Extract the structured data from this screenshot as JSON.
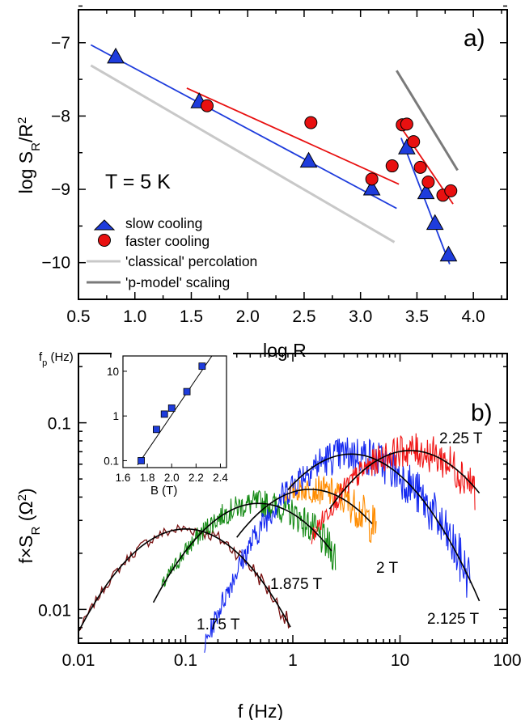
{
  "chart_data": [
    {
      "panel": "a)",
      "type": "scatter",
      "xlabel": "log R",
      "ylabel": "log S_R/R^2",
      "xlim": [
        0.5,
        4.3
      ],
      "ylim": [
        -10.5,
        -6.55
      ],
      "xticks": [
        "0.5",
        "1.0",
        "1.5",
        "2.0",
        "2.5",
        "3.0",
        "3.5",
        "4.0"
      ],
      "yticks": [
        "-7",
        "-8",
        "-9",
        "-10"
      ],
      "annotation": "T = 5 K",
      "legend": [
        {
          "label": "slow cooling",
          "marker": "triangle",
          "color": "#1e3cdc"
        },
        {
          "label": "faster cooling",
          "marker": "circle",
          "color": "#e81010"
        },
        {
          "label": "'classical' percolation",
          "marker": "line",
          "color": "#c8c8c8"
        },
        {
          "label": "'p-model' scaling",
          "marker": "line",
          "color": "#7a7a7a"
        }
      ],
      "series": [
        {
          "name": "slow cooling",
          "color": "#1e3cdc",
          "points": [
            [
              0.83,
              -7.2
            ],
            [
              1.57,
              -7.81
            ],
            [
              2.54,
              -8.62
            ],
            [
              3.1,
              -9.0
            ],
            [
              3.41,
              -8.44
            ],
            [
              3.58,
              -9.05
            ],
            [
              3.66,
              -9.47
            ],
            [
              3.78,
              -9.9
            ]
          ]
        },
        {
          "name": "faster cooling",
          "color": "#e81010",
          "points": [
            [
              1.64,
              -7.86
            ],
            [
              2.56,
              -8.09
            ],
            [
              3.1,
              -8.86
            ],
            [
              3.28,
              -8.68
            ],
            [
              3.37,
              -8.12
            ],
            [
              3.41,
              -8.11
            ],
            [
              3.47,
              -8.35
            ],
            [
              3.53,
              -8.7
            ],
            [
              3.6,
              -8.9
            ],
            [
              3.73,
              -9.08
            ],
            [
              3.8,
              -9.02
            ]
          ]
        }
      ],
      "fit_lines": [
        {
          "series": "slow cooling",
          "color": "#1e3cdc",
          "from": [
            0.61,
            -7.03
          ],
          "to": [
            3.32,
            -9.26
          ]
        },
        {
          "series": "slow cooling",
          "color": "#1e3cdc",
          "from": [
            3.36,
            -8.3
          ],
          "to": [
            3.79,
            -10.02
          ]
        },
        {
          "series": "faster cooling",
          "color": "#e81010",
          "from": [
            1.46,
            -7.62
          ],
          "to": [
            3.34,
            -8.93
          ]
        },
        {
          "series": "faster cooling",
          "color": "#e81010",
          "from": [
            3.37,
            -8.18
          ],
          "to": [
            3.82,
            -9.2
          ]
        },
        {
          "series": "'classical' percolation",
          "color": "#c8c8c8",
          "from": [
            0.61,
            -7.31
          ],
          "to": [
            3.3,
            -9.72
          ]
        },
        {
          "series": "'p-model' scaling",
          "color": "#7a7a7a",
          "from": [
            3.32,
            -7.38
          ],
          "to": [
            3.86,
            -8.74
          ]
        }
      ]
    },
    {
      "panel": "b)",
      "type": "line",
      "xscale": "log",
      "yscale": "log",
      "xlabel": "f (Hz)",
      "ylabel": "f×S_R (Ω^2)",
      "xlim": [
        0.01,
        100
      ],
      "ylim": [
        0.0066,
        0.235
      ],
      "xticks": [
        "0.01",
        "0.1",
        "1",
        "10",
        "100"
      ],
      "yticks": [
        "0.01",
        "0.1"
      ],
      "series": [
        {
          "name": "1.75 T",
          "color": "#7a1212",
          "f_range": [
            0.01,
            0.95
          ],
          "peak_f": 0.1,
          "peak_value": 0.027
        },
        {
          "name": "1.875 T",
          "color": "#148a14",
          "f_range": [
            0.06,
            2.5
          ],
          "peak_f": 0.48,
          "peak_value": 0.037
        },
        {
          "name": "2 T",
          "color": "#ff8c00",
          "f_range": [
            0.8,
            6
          ],
          "peak_f": 1.45,
          "peak_value": 0.044
        },
        {
          "name": "2.125 T",
          "color": "#1428f0",
          "f_range": [
            0.15,
            45
          ],
          "peak_f": 3.5,
          "peak_value": 0.068
        },
        {
          "name": "2.25 T",
          "color": "#f01414",
          "f_range": [
            1.5,
            50
          ],
          "peak_f": 12.5,
          "peak_value": 0.071
        }
      ],
      "inset": {
        "type": "scatter",
        "xlabel": "B (T)",
        "ylabel": "f_p (Hz)",
        "yscale": "log",
        "xlim": [
          1.6,
          2.45
        ],
        "ylim": [
          0.07,
          22
        ],
        "xticks": [
          "1.6",
          "1.8",
          "2.0",
          "2.2",
          "2.4"
        ],
        "yticks": [
          "0.1",
          "1",
          "10"
        ],
        "points": [
          [
            1.75,
            0.1
          ],
          [
            1.875,
            0.5
          ],
          [
            1.94,
            1.1
          ],
          [
            2.0,
            1.5
          ],
          [
            2.125,
            3.5
          ],
          [
            2.25,
            13.0
          ]
        ],
        "fit_line": {
          "from": [
            1.72,
            0.08
          ],
          "to": [
            2.33,
            24
          ]
        }
      }
    }
  ]
}
